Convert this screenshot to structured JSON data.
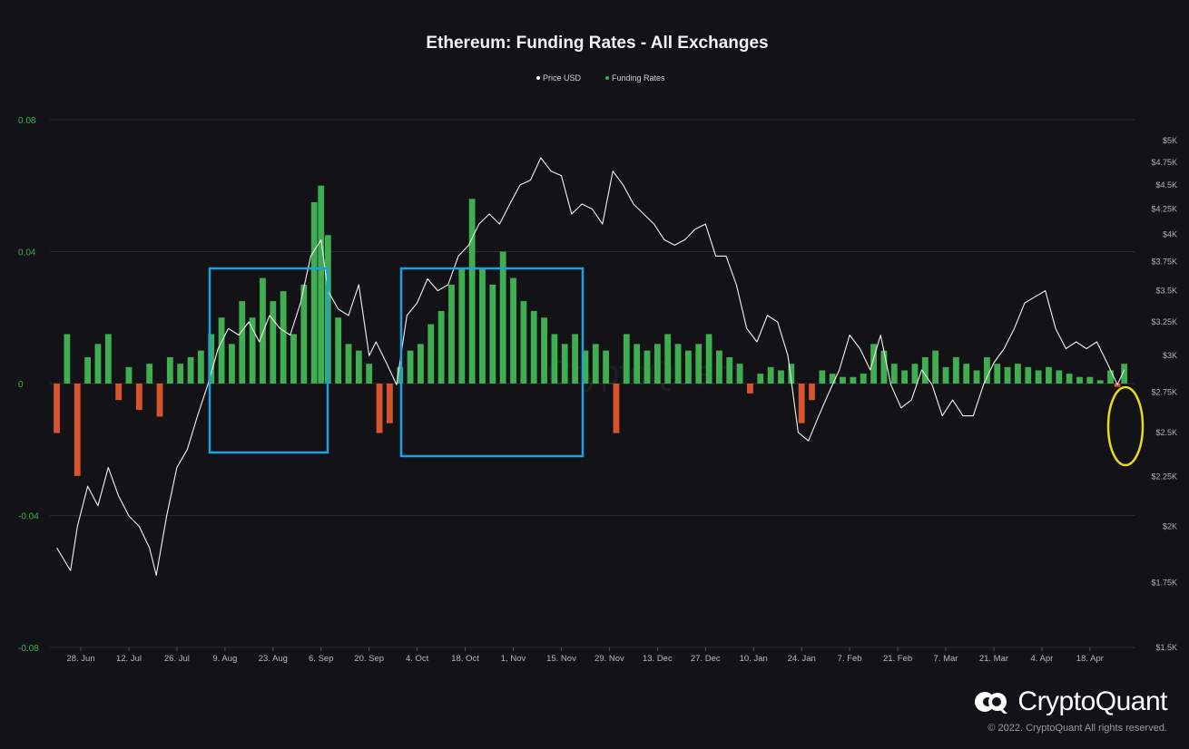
{
  "chart_data": {
    "type": "bar+line",
    "title": "Ethereum: Funding Rates - All Exchanges",
    "legend": [
      {
        "name": "Price USD",
        "color": "#ffffff"
      },
      {
        "name": "Funding Rates",
        "color": "#3fae50"
      }
    ],
    "legend_position": "top-center",
    "x_ticks": [
      "28. Jun",
      "12. Jul",
      "26. Jul",
      "9. Aug",
      "23. Aug",
      "6. Sep",
      "20. Sep",
      "4. Oct",
      "18. Oct",
      "1. Nov",
      "15. Nov",
      "29. Nov",
      "13. Dec",
      "27. Dec",
      "10. Jan",
      "24. Jan",
      "7. Feb",
      "21. Feb",
      "7. Mar",
      "21. Mar",
      "4. Apr",
      "18. Apr"
    ],
    "y_left": {
      "ticks": [
        "0.08",
        "0.04",
        "0",
        "-0.04",
        "-0.08"
      ],
      "range": [
        -0.08,
        0.08
      ]
    },
    "y_right": {
      "ticks": [
        "$5K",
        "$4.75K",
        "$4.5K",
        "$4.25K",
        "$4K",
        "$3.75K",
        "$3.5K",
        "$3.25K",
        "$3K",
        "$2.75K",
        "$2.5K",
        "$2.25K",
        "$2K",
        "$1.75K",
        "$1.5K"
      ],
      "range": [
        1500,
        5000
      ],
      "scale": "log"
    },
    "grid": true,
    "positive_color": "#3fae50",
    "negative_color": "#d9532c",
    "highlight_box_color": "#1fa0e0",
    "highlight_circle_color": "#e8dc1a",
    "price_series": {
      "name": "Price USD",
      "points": [
        [
          "2021-06-21",
          1900
        ],
        [
          "2021-06-23",
          1850
        ],
        [
          "2021-06-25",
          1800
        ],
        [
          "2021-06-27",
          2000
        ],
        [
          "2021-06-30",
          2200
        ],
        [
          "2021-07-03",
          2100
        ],
        [
          "2021-07-06",
          2300
        ],
        [
          "2021-07-09",
          2150
        ],
        [
          "2021-07-12",
          2050
        ],
        [
          "2021-07-15",
          2000
        ],
        [
          "2021-07-18",
          1900
        ],
        [
          "2021-07-20",
          1780
        ],
        [
          "2021-07-23",
          2050
        ],
        [
          "2021-07-26",
          2300
        ],
        [
          "2021-07-29",
          2400
        ],
        [
          "2021-08-01",
          2600
        ],
        [
          "2021-08-04",
          2800
        ],
        [
          "2021-08-07",
          3050
        ],
        [
          "2021-08-10",
          3200
        ],
        [
          "2021-08-13",
          3150
        ],
        [
          "2021-08-16",
          3250
        ],
        [
          "2021-08-19",
          3100
        ],
        [
          "2021-08-22",
          3300
        ],
        [
          "2021-08-25",
          3200
        ],
        [
          "2021-08-28",
          3150
        ],
        [
          "2021-08-31",
          3400
        ],
        [
          "2021-09-03",
          3800
        ],
        [
          "2021-09-06",
          3950
        ],
        [
          "2021-09-08",
          3500
        ],
        [
          "2021-09-11",
          3350
        ],
        [
          "2021-09-14",
          3300
        ],
        [
          "2021-09-17",
          3550
        ],
        [
          "2021-09-20",
          3000
        ],
        [
          "2021-09-22",
          3100
        ],
        [
          "2021-09-25",
          2950
        ],
        [
          "2021-09-28",
          2800
        ],
        [
          "2021-10-01",
          3300
        ],
        [
          "2021-10-04",
          3400
        ],
        [
          "2021-10-07",
          3600
        ],
        [
          "2021-10-10",
          3500
        ],
        [
          "2021-10-13",
          3550
        ],
        [
          "2021-10-16",
          3800
        ],
        [
          "2021-10-19",
          3900
        ],
        [
          "2021-10-22",
          4100
        ],
        [
          "2021-10-25",
          4200
        ],
        [
          "2021-10-28",
          4100
        ],
        [
          "2021-10-31",
          4300
        ],
        [
          "2021-11-03",
          4500
        ],
        [
          "2021-11-06",
          4550
        ],
        [
          "2021-11-09",
          4800
        ],
        [
          "2021-11-12",
          4650
        ],
        [
          "2021-11-15",
          4600
        ],
        [
          "2021-11-18",
          4200
        ],
        [
          "2021-11-21",
          4300
        ],
        [
          "2021-11-24",
          4250
        ],
        [
          "2021-11-27",
          4100
        ],
        [
          "2021-11-30",
          4650
        ],
        [
          "2021-12-03",
          4500
        ],
        [
          "2021-12-06",
          4300
        ],
        [
          "2021-12-09",
          4200
        ],
        [
          "2021-12-12",
          4100
        ],
        [
          "2021-12-15",
          3950
        ],
        [
          "2021-12-18",
          3900
        ],
        [
          "2021-12-21",
          3950
        ],
        [
          "2021-12-24",
          4050
        ],
        [
          "2021-12-27",
          4100
        ],
        [
          "2021-12-30",
          3800
        ],
        [
          "2022-01-02",
          3800
        ],
        [
          "2022-01-05",
          3550
        ],
        [
          "2022-01-08",
          3200
        ],
        [
          "2022-01-11",
          3100
        ],
        [
          "2022-01-14",
          3300
        ],
        [
          "2022-01-17",
          3250
        ],
        [
          "2022-01-20",
          3000
        ],
        [
          "2022-01-23",
          2500
        ],
        [
          "2022-01-26",
          2450
        ],
        [
          "2022-01-29",
          2600
        ],
        [
          "2022-02-01",
          2750
        ],
        [
          "2022-02-04",
          2900
        ],
        [
          "2022-02-07",
          3150
        ],
        [
          "2022-02-10",
          3050
        ],
        [
          "2022-02-13",
          2900
        ],
        [
          "2022-02-16",
          3150
        ],
        [
          "2022-02-19",
          2800
        ],
        [
          "2022-02-22",
          2650
        ],
        [
          "2022-02-25",
          2700
        ],
        [
          "2022-02-28",
          2900
        ],
        [
          "2022-03-03",
          2800
        ],
        [
          "2022-03-06",
          2600
        ],
        [
          "2022-03-09",
          2700
        ],
        [
          "2022-03-12",
          2600
        ],
        [
          "2022-03-15",
          2600
        ],
        [
          "2022-03-18",
          2800
        ],
        [
          "2022-03-21",
          2950
        ],
        [
          "2022-03-24",
          3050
        ],
        [
          "2022-03-27",
          3200
        ],
        [
          "2022-03-30",
          3400
        ],
        [
          "2022-04-02",
          3450
        ],
        [
          "2022-04-05",
          3500
        ],
        [
          "2022-04-08",
          3200
        ],
        [
          "2022-04-11",
          3050
        ],
        [
          "2022-04-14",
          3100
        ],
        [
          "2022-04-17",
          3050
        ],
        [
          "2022-04-20",
          3100
        ],
        [
          "2022-04-23",
          2950
        ],
        [
          "2022-04-26",
          2800
        ],
        [
          "2022-04-28",
          2900
        ]
      ]
    },
    "funding_series": {
      "name": "Funding Rates",
      "points": [
        [
          "2021-06-21",
          -0.015
        ],
        [
          "2021-06-24",
          0.015
        ],
        [
          "2021-06-27",
          -0.028
        ],
        [
          "2021-06-30",
          0.008
        ],
        [
          "2021-07-03",
          0.012
        ],
        [
          "2021-07-06",
          0.015
        ],
        [
          "2021-07-09",
          -0.005
        ],
        [
          "2021-07-12",
          0.005
        ],
        [
          "2021-07-15",
          -0.008
        ],
        [
          "2021-07-18",
          0.006
        ],
        [
          "2021-07-21",
          -0.01
        ],
        [
          "2021-07-24",
          0.008
        ],
        [
          "2021-07-27",
          0.006
        ],
        [
          "2021-07-30",
          0.008
        ],
        [
          "2021-08-02",
          0.01
        ],
        [
          "2021-08-05",
          0.015
        ],
        [
          "2021-08-08",
          0.02
        ],
        [
          "2021-08-11",
          0.012
        ],
        [
          "2021-08-14",
          0.025
        ],
        [
          "2021-08-17",
          0.02
        ],
        [
          "2021-08-20",
          0.032
        ],
        [
          "2021-08-23",
          0.025
        ],
        [
          "2021-08-26",
          0.028
        ],
        [
          "2021-08-29",
          0.015
        ],
        [
          "2021-09-01",
          0.03
        ],
        [
          "2021-09-04",
          0.055
        ],
        [
          "2021-09-06",
          0.06
        ],
        [
          "2021-09-08",
          0.045
        ],
        [
          "2021-09-11",
          0.02
        ],
        [
          "2021-09-14",
          0.012
        ],
        [
          "2021-09-17",
          0.01
        ],
        [
          "2021-09-20",
          0.006
        ],
        [
          "2021-09-23",
          -0.015
        ],
        [
          "2021-09-26",
          -0.012
        ],
        [
          "2021-09-29",
          0.005
        ],
        [
          "2021-10-02",
          0.01
        ],
        [
          "2021-10-05",
          0.012
        ],
        [
          "2021-10-08",
          0.018
        ],
        [
          "2021-10-11",
          0.022
        ],
        [
          "2021-10-14",
          0.03
        ],
        [
          "2021-10-17",
          0.035
        ],
        [
          "2021-10-20",
          0.056
        ],
        [
          "2021-10-23",
          0.035
        ],
        [
          "2021-10-26",
          0.03
        ],
        [
          "2021-10-29",
          0.04
        ],
        [
          "2021-11-01",
          0.032
        ],
        [
          "2021-11-04",
          0.025
        ],
        [
          "2021-11-07",
          0.022
        ],
        [
          "2021-11-10",
          0.02
        ],
        [
          "2021-11-13",
          0.015
        ],
        [
          "2021-11-16",
          0.012
        ],
        [
          "2021-11-19",
          0.015
        ],
        [
          "2021-11-22",
          0.01
        ],
        [
          "2021-11-25",
          0.012
        ],
        [
          "2021-11-28",
          0.01
        ],
        [
          "2021-12-01",
          -0.015
        ],
        [
          "2021-12-04",
          0.015
        ],
        [
          "2021-12-07",
          0.012
        ],
        [
          "2021-12-10",
          0.01
        ],
        [
          "2021-12-13",
          0.012
        ],
        [
          "2021-12-16",
          0.015
        ],
        [
          "2021-12-19",
          0.012
        ],
        [
          "2021-12-22",
          0.01
        ],
        [
          "2021-12-25",
          0.012
        ],
        [
          "2021-12-28",
          0.015
        ],
        [
          "2021-12-31",
          0.01
        ],
        [
          "2022-01-03",
          0.008
        ],
        [
          "2022-01-06",
          0.006
        ],
        [
          "2022-01-09",
          -0.003
        ],
        [
          "2022-01-12",
          0.003
        ],
        [
          "2022-01-15",
          0.005
        ],
        [
          "2022-01-18",
          0.004
        ],
        [
          "2022-01-21",
          0.006
        ],
        [
          "2022-01-24",
          -0.012
        ],
        [
          "2022-01-27",
          -0.005
        ],
        [
          "2022-01-30",
          0.004
        ],
        [
          "2022-02-02",
          0.003
        ],
        [
          "2022-02-05",
          0.002
        ],
        [
          "2022-02-08",
          0.002
        ],
        [
          "2022-02-11",
          0.003
        ],
        [
          "2022-02-14",
          0.012
        ],
        [
          "2022-02-17",
          0.01
        ],
        [
          "2022-02-20",
          0.006
        ],
        [
          "2022-02-23",
          0.004
        ],
        [
          "2022-02-26",
          0.006
        ],
        [
          "2022-03-01",
          0.008
        ],
        [
          "2022-03-04",
          0.01
        ],
        [
          "2022-03-07",
          0.005
        ],
        [
          "2022-03-10",
          0.008
        ],
        [
          "2022-03-13",
          0.006
        ],
        [
          "2022-03-16",
          0.004
        ],
        [
          "2022-03-19",
          0.008
        ],
        [
          "2022-03-22",
          0.006
        ],
        [
          "2022-03-25",
          0.005
        ],
        [
          "2022-03-28",
          0.006
        ],
        [
          "2022-03-31",
          0.005
        ],
        [
          "2022-04-03",
          0.004
        ],
        [
          "2022-04-06",
          0.005
        ],
        [
          "2022-04-09",
          0.004
        ],
        [
          "2022-04-12",
          0.003
        ],
        [
          "2022-04-15",
          0.002
        ],
        [
          "2022-04-18",
          0.002
        ],
        [
          "2022-04-21",
          0.001
        ],
        [
          "2022-04-24",
          0.004
        ],
        [
          "2022-04-26",
          -0.001
        ],
        [
          "2022-04-28",
          0.006
        ]
      ]
    }
  },
  "watermark": "CryptoQuant",
  "brand": {
    "name": "CryptoQuant",
    "copyright": "© 2022. CryptoQuant All rights reserved."
  }
}
